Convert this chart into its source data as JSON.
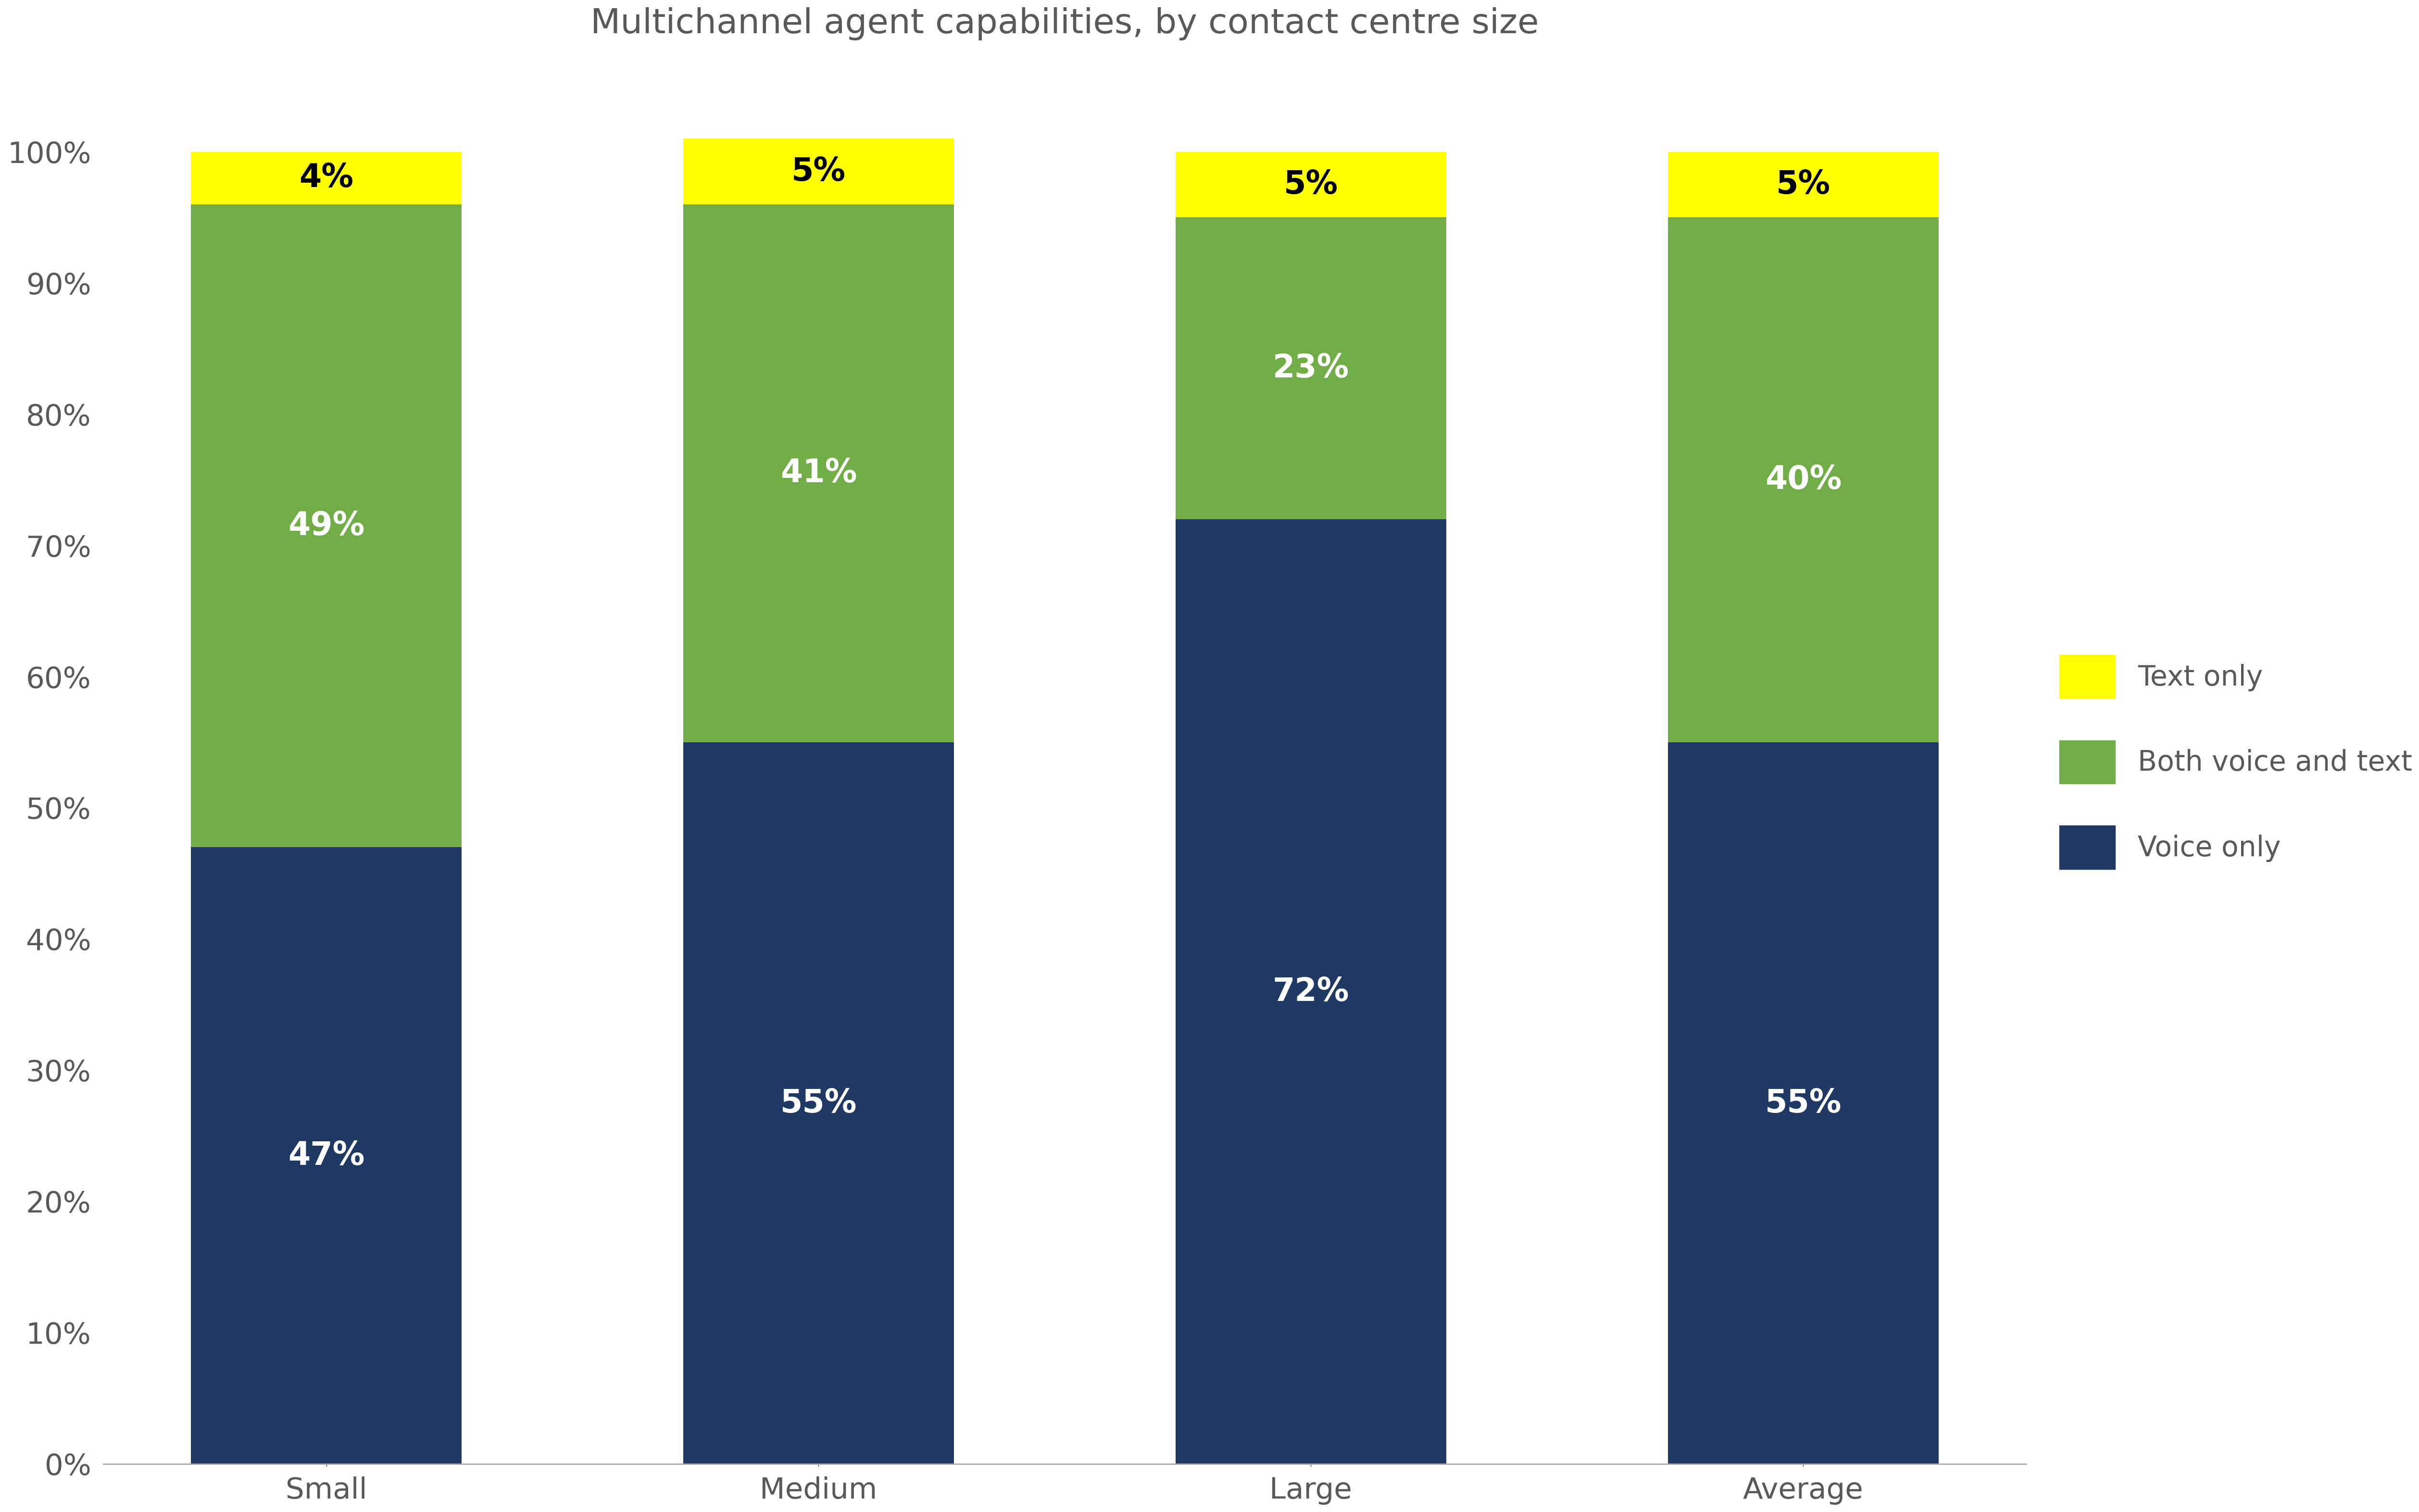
{
  "title": "Multichannel agent capabilities, by contact centre size",
  "categories": [
    "Small",
    "Medium",
    "Large",
    "Average"
  ],
  "voice_only": [
    47,
    55,
    72,
    55
  ],
  "both_voice_text": [
    49,
    41,
    23,
    40
  ],
  "text_only": [
    4,
    5,
    5,
    5
  ],
  "colors": {
    "voice_only": "#1F3864",
    "both_voice_text": "#70AD47",
    "text_only": "#FFFF00"
  },
  "legend_labels": [
    "Text only",
    "Both voice and text",
    "Voice only"
  ],
  "ylabel_ticks": [
    "0%",
    "10%",
    "20%",
    "30%",
    "40%",
    "50%",
    "60%",
    "70%",
    "80%",
    "90%",
    "100%"
  ],
  "title_fontsize": 52,
  "label_fontsize": 48,
  "tick_fontsize": 44,
  "legend_fontsize": 42,
  "bar_width": 0.55,
  "background_color": "#FFFFFF",
  "text_color_dark": "#000000",
  "text_color_axis": "#595959"
}
